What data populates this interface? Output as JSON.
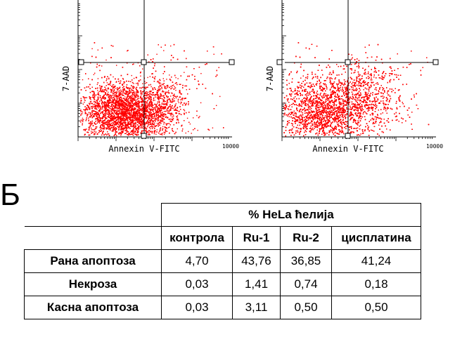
{
  "figure": {
    "panel_letter": "Б",
    "plots": [
      {
        "id": "left",
        "x_axis_label": "Annexin V-FITC",
        "y_axis_label": "7-AAD",
        "x_max_label": "10000",
        "spread": "control"
      },
      {
        "id": "right",
        "x_axis_label": "Annexin V-FITC",
        "y_axis_label": "7-AAD",
        "x_max_label": "10000",
        "spread": "treated"
      }
    ],
    "point_color": "#ff0000"
  },
  "table": {
    "title": "% HeLa ћелија",
    "columns": [
      "контрола",
      "Ru-1",
      "Ru-2",
      "цисплатина"
    ],
    "rows": [
      {
        "label": "Рана апоптоза",
        "values": [
          "4,70",
          "43,76",
          "36,85",
          "41,24"
        ]
      },
      {
        "label": "Некроза",
        "values": [
          "0,03",
          "1,41",
          "0,74",
          "0,18"
        ]
      },
      {
        "label": "Касна апоптоза",
        "values": [
          "0,03",
          "3,11",
          "0,50",
          "0,50"
        ]
      }
    ],
    "title_color": "#d7191c",
    "header_color": "#3b74b7"
  },
  "chart_data": [
    {
      "type": "scatter",
      "xlabel": "Annexin V-FITC",
      "ylabel": "7-AAD",
      "quadrants": [
        "upper-left",
        "upper-right",
        "lower-left",
        "lower-right"
      ]
    },
    {
      "type": "scatter",
      "xlabel": "Annexin V-FITC",
      "ylabel": "7-AAD",
      "quadrants": [
        "upper-left",
        "upper-right",
        "lower-left",
        "lower-right"
      ]
    }
  ]
}
